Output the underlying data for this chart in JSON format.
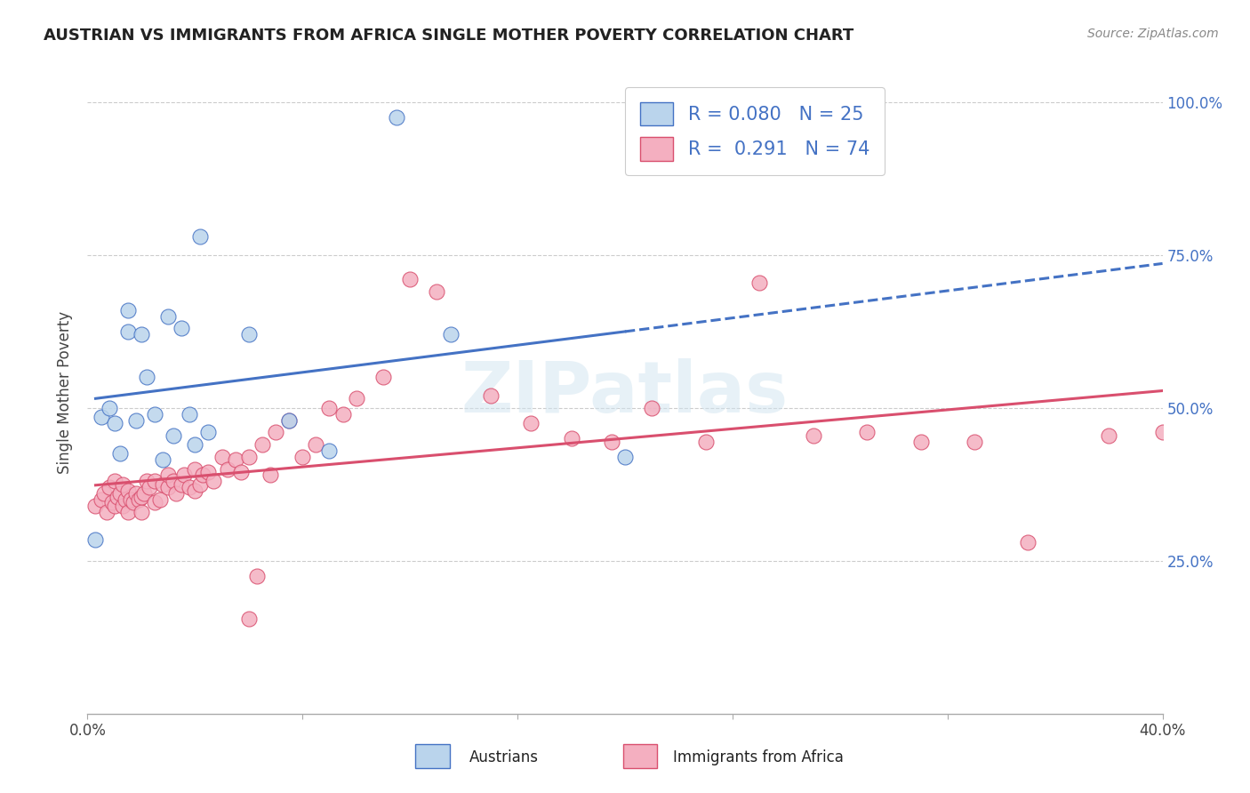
{
  "title": "AUSTRIAN VS IMMIGRANTS FROM AFRICA SINGLE MOTHER POVERTY CORRELATION CHART",
  "source": "Source: ZipAtlas.com",
  "ylabel": "Single Mother Poverty",
  "yticks": [
    "25.0%",
    "50.0%",
    "75.0%",
    "100.0%"
  ],
  "ytick_vals": [
    0.25,
    0.5,
    0.75,
    1.0
  ],
  "xlim": [
    0.0,
    0.4
  ],
  "ylim": [
    0.0,
    1.05
  ],
  "legend_austrians_R": "0.080",
  "legend_austrians_N": "25",
  "legend_africa_R": "0.291",
  "legend_africa_N": "74",
  "austrians_color": "#bad4ec",
  "africa_color": "#f4afc0",
  "trendline_austrians_color": "#4472c4",
  "trendline_africa_color": "#d94f6e",
  "background_color": "#ffffff",
  "watermark": "ZIPatlas",
  "austrians_x": [
    0.003,
    0.005,
    0.008,
    0.01,
    0.012,
    0.015,
    0.015,
    0.018,
    0.02,
    0.022,
    0.025,
    0.028,
    0.03,
    0.032,
    0.035,
    0.038,
    0.04,
    0.042,
    0.045,
    0.06,
    0.075,
    0.09,
    0.115,
    0.135,
    0.2
  ],
  "austrians_y": [
    0.285,
    0.485,
    0.5,
    0.475,
    0.425,
    0.625,
    0.66,
    0.48,
    0.62,
    0.55,
    0.49,
    0.415,
    0.65,
    0.455,
    0.63,
    0.49,
    0.44,
    0.78,
    0.46,
    0.62,
    0.48,
    0.43,
    0.975,
    0.62,
    0.42
  ],
  "africa_x": [
    0.003,
    0.005,
    0.006,
    0.007,
    0.008,
    0.009,
    0.01,
    0.01,
    0.011,
    0.012,
    0.013,
    0.013,
    0.014,
    0.015,
    0.015,
    0.016,
    0.017,
    0.018,
    0.019,
    0.02,
    0.02,
    0.021,
    0.022,
    0.023,
    0.025,
    0.025,
    0.027,
    0.028,
    0.03,
    0.03,
    0.032,
    0.033,
    0.035,
    0.036,
    0.038,
    0.04,
    0.04,
    0.042,
    0.043,
    0.045,
    0.047,
    0.05,
    0.052,
    0.055,
    0.057,
    0.06,
    0.06,
    0.063,
    0.065,
    0.068,
    0.07,
    0.075,
    0.08,
    0.085,
    0.09,
    0.095,
    0.1,
    0.11,
    0.12,
    0.13,
    0.15,
    0.165,
    0.18,
    0.195,
    0.21,
    0.23,
    0.25,
    0.27,
    0.29,
    0.31,
    0.33,
    0.35,
    0.38,
    0.4
  ],
  "africa_y": [
    0.34,
    0.35,
    0.36,
    0.33,
    0.37,
    0.345,
    0.34,
    0.38,
    0.355,
    0.36,
    0.375,
    0.34,
    0.35,
    0.33,
    0.365,
    0.35,
    0.345,
    0.36,
    0.35,
    0.33,
    0.355,
    0.36,
    0.38,
    0.37,
    0.345,
    0.38,
    0.35,
    0.375,
    0.37,
    0.39,
    0.38,
    0.36,
    0.375,
    0.39,
    0.37,
    0.365,
    0.4,
    0.375,
    0.39,
    0.395,
    0.38,
    0.42,
    0.4,
    0.415,
    0.395,
    0.155,
    0.42,
    0.225,
    0.44,
    0.39,
    0.46,
    0.48,
    0.42,
    0.44,
    0.5,
    0.49,
    0.515,
    0.55,
    0.71,
    0.69,
    0.52,
    0.475,
    0.45,
    0.445,
    0.5,
    0.445,
    0.705,
    0.455,
    0.46,
    0.445,
    0.445,
    0.28,
    0.455,
    0.46
  ]
}
